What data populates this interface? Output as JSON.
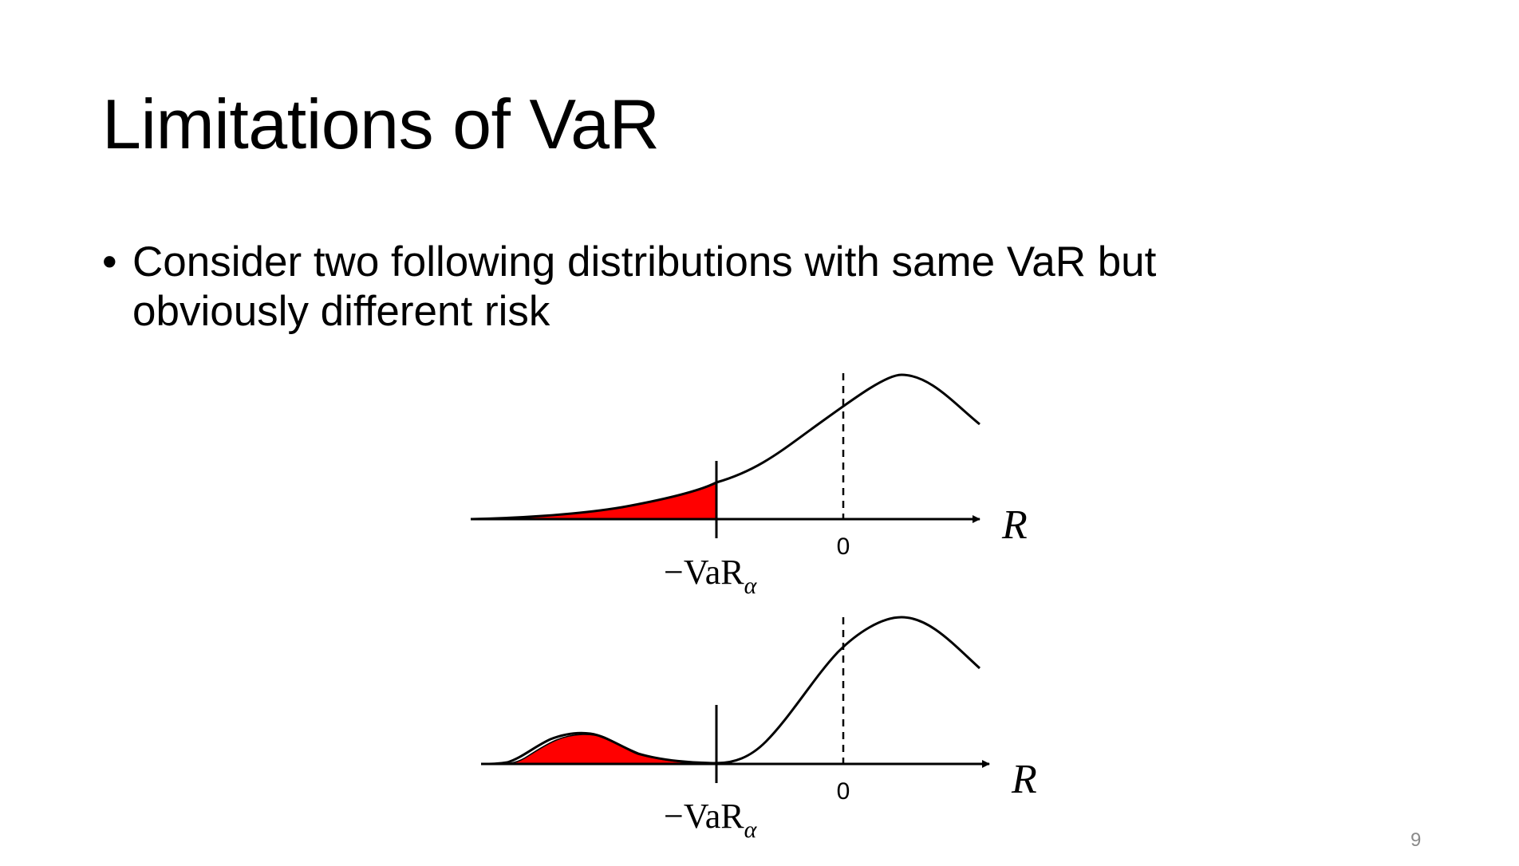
{
  "slide": {
    "title": "Limitations of VaR",
    "bullets": [
      {
        "marker": "•",
        "text": "Consider two following distributions with same VaR but obviously different risk"
      }
    ],
    "page_number": "9"
  },
  "figure": {
    "tail_fill_color": "#ff0000",
    "curve_color": "#000000",
    "panels": [
      {
        "axis_label": "R",
        "zero_label": "0",
        "var_label_prefix": "−VaR",
        "var_label_subscript": "α"
      },
      {
        "axis_label": "R",
        "zero_label": "0",
        "var_label_prefix": "−VaR",
        "var_label_subscript": "α"
      }
    ]
  }
}
